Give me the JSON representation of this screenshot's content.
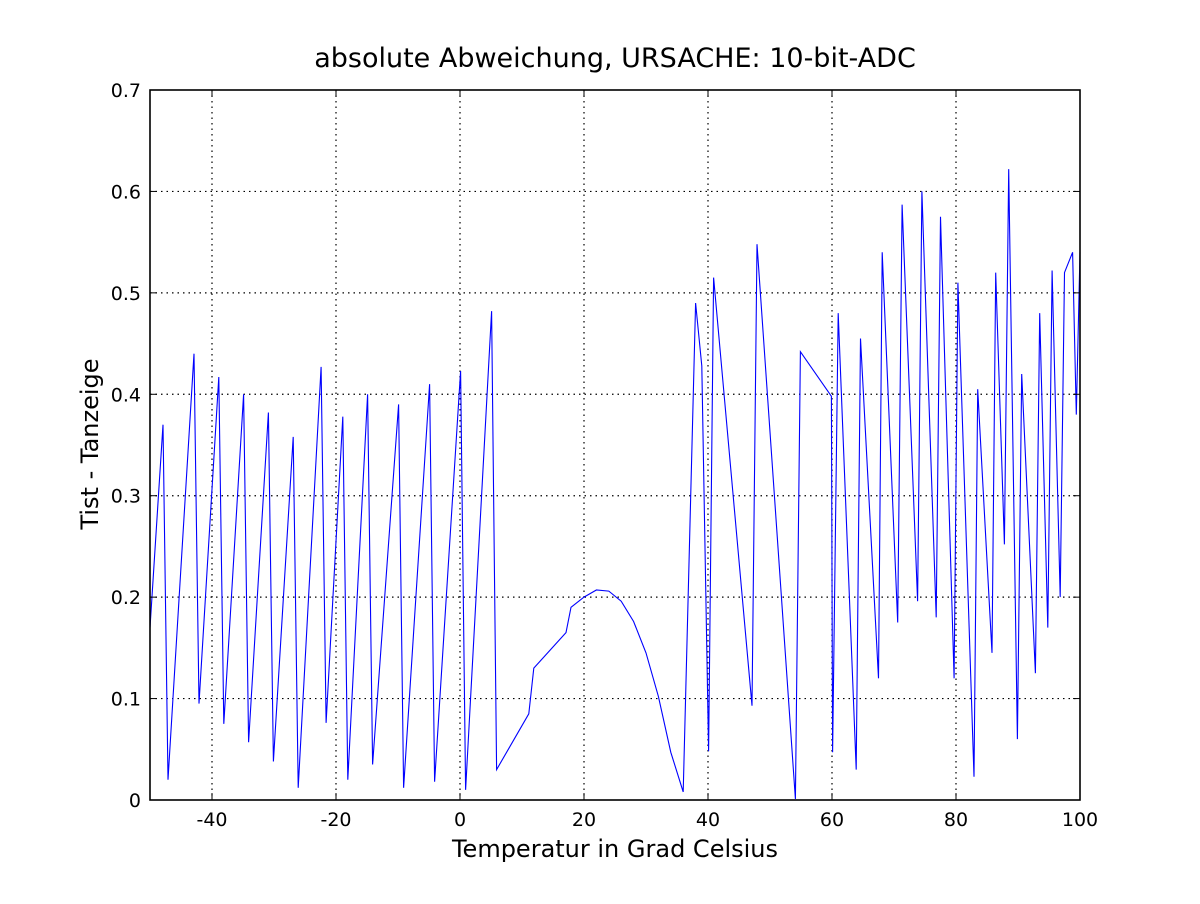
{
  "chart_data": {
    "type": "line",
    "title": "absolute Abweichung, URSACHE: 10-bit-ADC",
    "xlabel": "Temperatur in Grad Celsius",
    "ylabel": "Tist - Tanzeige",
    "xlim": [
      -50,
      100
    ],
    "ylim": [
      0,
      0.7
    ],
    "x_ticks": [
      -40,
      -20,
      0,
      20,
      40,
      60,
      80,
      100
    ],
    "x_tick_labels": [
      "-40",
      "-20",
      "0",
      "20",
      "40",
      "60",
      "80",
      "100"
    ],
    "y_ticks": [
      0,
      0.1,
      0.2,
      0.3,
      0.4,
      0.5,
      0.6,
      0.7
    ],
    "y_tick_labels": [
      "0",
      "0.1",
      "0.2",
      "0.3",
      "0.4",
      "0.5",
      "0.6",
      "0.7"
    ],
    "grid": true,
    "grid_style": "dotted",
    "legend": "none",
    "series": [
      {
        "color": "#0000ff",
        "x": [
          -50,
          -47.9,
          -47.1,
          -42.9,
          -42.1,
          -38.9,
          -38.1,
          -34.9,
          -34.1,
          -30.9,
          -30.1,
          -26.9,
          -26.1,
          -22.4,
          -21.6,
          -18.9,
          -18.1,
          -14.9,
          -14.1,
          -9.9,
          -9.1,
          -4.9,
          -4.1,
          0.1,
          0.9,
          5.1,
          5.9,
          11.1,
          11.9,
          17.1,
          17.9,
          20,
          22,
          24,
          26,
          28,
          30,
          32,
          34,
          36,
          38,
          39,
          40.1,
          40.9,
          47.1,
          47.9,
          54.1,
          54.9,
          59.9,
          60.1,
          61,
          63.9,
          64.6,
          67.5,
          68.1,
          70.6,
          71.3,
          73.8,
          74.5,
          76.8,
          77.5,
          79.7,
          80.3,
          82.9,
          83.5,
          85.8,
          86.4,
          87.8,
          88.5,
          89.9,
          90.6,
          92.8,
          93.5,
          94.8,
          95.5,
          96.8,
          97.5,
          98.8,
          99.4,
          100
        ],
        "y": [
          0.17,
          0.37,
          0.02,
          0.44,
          0.095,
          0.417,
          0.075,
          0.4,
          0.057,
          0.382,
          0.038,
          0.358,
          0.012,
          0.427,
          0.076,
          0.378,
          0.02,
          0.4,
          0.035,
          0.39,
          0.012,
          0.41,
          0.018,
          0.423,
          0.01,
          0.482,
          0.03,
          0.085,
          0.13,
          0.165,
          0.19,
          0.2,
          0.207,
          0.206,
          0.196,
          0.176,
          0.145,
          0.102,
          0.047,
          0.008,
          0.49,
          0.428,
          0.048,
          0.515,
          0.093,
          0.548,
          0.001,
          0.442,
          0.398,
          0.047,
          0.48,
          0.03,
          0.455,
          0.12,
          0.54,
          0.175,
          0.587,
          0.196,
          0.6,
          0.18,
          0.575,
          0.12,
          0.51,
          0.023,
          0.405,
          0.145,
          0.52,
          0.252,
          0.622,
          0.06,
          0.42,
          0.125,
          0.48,
          0.17,
          0.522,
          0.2,
          0.52,
          0.54,
          0.38,
          0.54
        ]
      }
    ]
  }
}
